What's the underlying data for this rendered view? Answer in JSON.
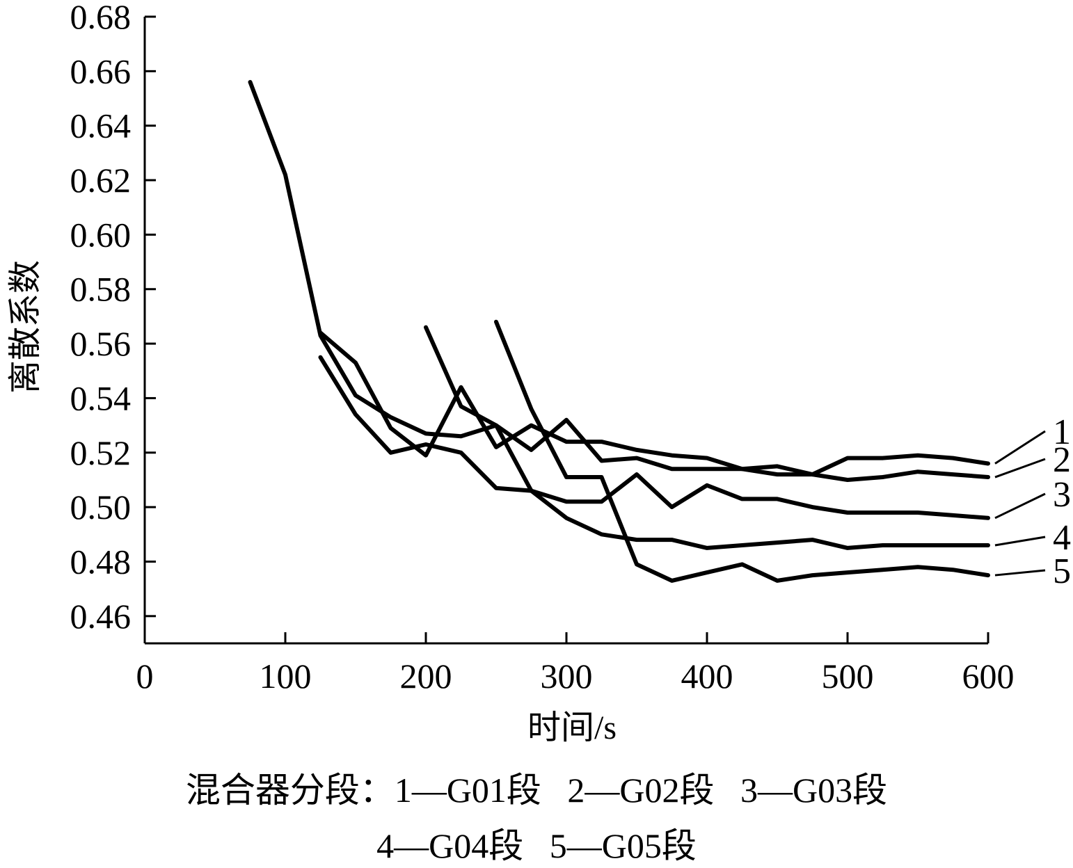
{
  "chart_data": {
    "type": "line",
    "title": "",
    "xlabel": "时间/s",
    "ylabel": "离散系数",
    "xlim": [
      0,
      600
    ],
    "ylim": [
      0.45,
      0.68
    ],
    "x_ticks": [
      0,
      100,
      200,
      300,
      400,
      500,
      600
    ],
    "x_tick_labels": [
      "0",
      "100",
      "200",
      "300",
      "400",
      "500",
      "600"
    ],
    "y_ticks": [
      0.46,
      0.48,
      0.5,
      0.52,
      0.54,
      0.56,
      0.58,
      0.6,
      0.62,
      0.64,
      0.66,
      0.68
    ],
    "y_tick_labels": [
      "0.46",
      "0.48",
      "0.50",
      "0.52",
      "0.54",
      "0.56",
      "0.58",
      "0.60",
      "0.62",
      "0.64",
      "0.66",
      "0.68"
    ],
    "grid": false,
    "series": [
      {
        "name": "1",
        "x": [
          75,
          100,
          125,
          150,
          175,
          200,
          225,
          250,
          275,
          300,
          325,
          350,
          375,
          400,
          425,
          450,
          475,
          500,
          525,
          550,
          575,
          600
        ],
        "y": [
          0.656,
          0.622,
          0.563,
          0.541,
          0.533,
          0.527,
          0.526,
          0.53,
          0.521,
          0.532,
          0.517,
          0.518,
          0.514,
          0.514,
          0.514,
          0.512,
          0.512,
          0.518,
          0.518,
          0.519,
          0.518,
          0.516
        ]
      },
      {
        "name": "2",
        "x": [
          125,
          150,
          175,
          200,
          225,
          250,
          275,
          300,
          325,
          350,
          375,
          400,
          425,
          450,
          475,
          500,
          525,
          550,
          575,
          600
        ],
        "y": [
          0.564,
          0.553,
          0.529,
          0.519,
          0.544,
          0.522,
          0.53,
          0.524,
          0.524,
          0.521,
          0.519,
          0.518,
          0.514,
          0.515,
          0.512,
          0.51,
          0.511,
          0.513,
          0.512,
          0.511
        ]
      },
      {
        "name": "3",
        "x": [
          125,
          150,
          175,
          200,
          225,
          250,
          275,
          300,
          325,
          350,
          375,
          400,
          425,
          450,
          475,
          500,
          525,
          550,
          575,
          600
        ],
        "y": [
          0.555,
          0.534,
          0.52,
          0.523,
          0.52,
          0.507,
          0.506,
          0.502,
          0.502,
          0.512,
          0.5,
          0.508,
          0.503,
          0.503,
          0.5,
          0.498,
          0.498,
          0.498,
          0.497,
          0.496
        ]
      },
      {
        "name": "4",
        "x": [
          200,
          225,
          250,
          275,
          300,
          325,
          350,
          375,
          400,
          425,
          450,
          475,
          500,
          525,
          550,
          575,
          600
        ],
        "y": [
          0.566,
          0.537,
          0.53,
          0.506,
          0.496,
          0.49,
          0.488,
          0.488,
          0.485,
          0.486,
          0.487,
          0.488,
          0.485,
          0.486,
          0.486,
          0.486,
          0.486
        ]
      },
      {
        "name": "5",
        "x": [
          250,
          275,
          300,
          325,
          350,
          375,
          400,
          425,
          450,
          475,
          500,
          525,
          550,
          575,
          600
        ],
        "y": [
          0.568,
          0.536,
          0.511,
          0.511,
          0.479,
          0.473,
          0.476,
          0.479,
          0.473,
          0.475,
          0.476,
          0.477,
          0.478,
          0.477,
          0.475
        ]
      }
    ],
    "series_labels": [
      "1",
      "2",
      "3",
      "4",
      "5"
    ],
    "legend": {
      "line1": "混合器分段：1—G01段   2—G02段   3—G03段",
      "line2": "4—G04段   5—G05段"
    }
  }
}
